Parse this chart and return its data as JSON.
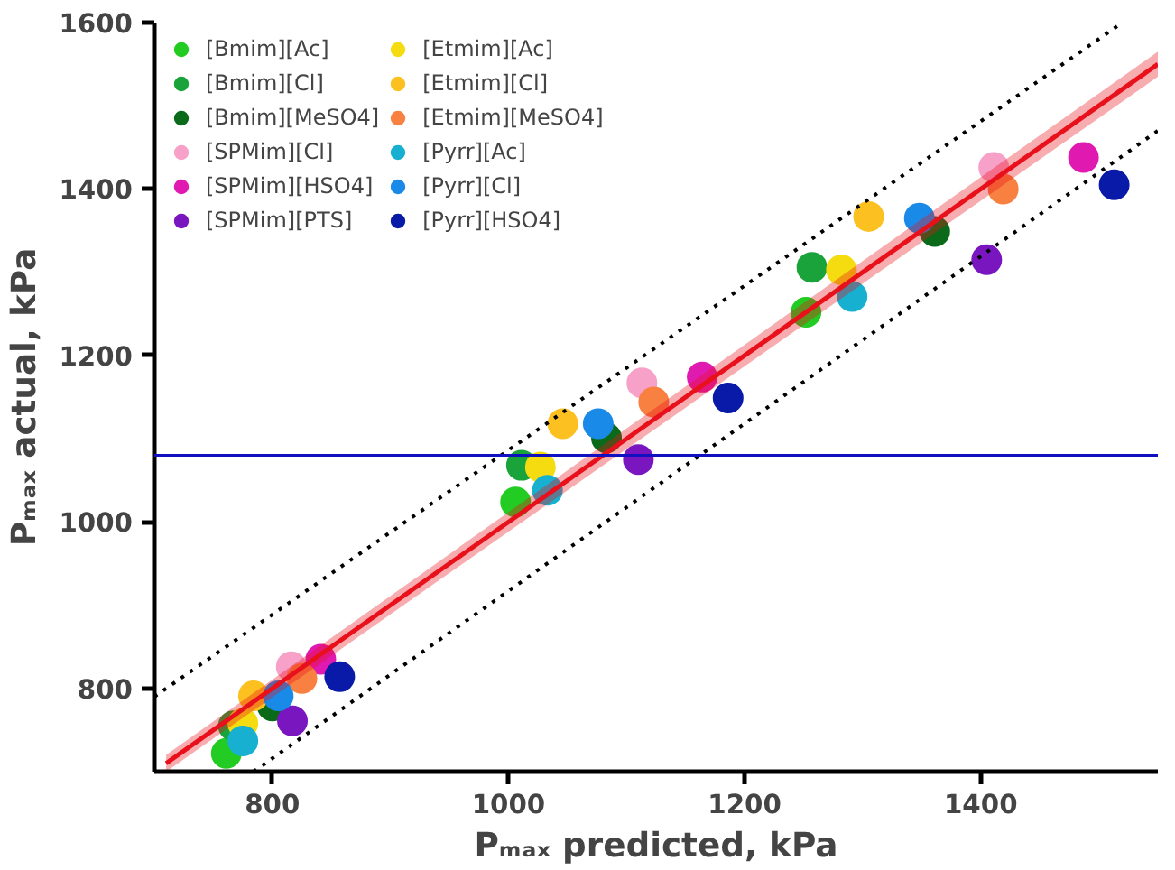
{
  "chart_data": {
    "type": "scatter",
    "xlabel": "Pₘₐₓ predicted, kPa",
    "ylabel": "Pₘₐₓ actual, kPa",
    "xlim": [
      700,
      1550
    ],
    "ylim": [
      700,
      1600
    ],
    "xticks": [
      800,
      1000,
      1200,
      1400
    ],
    "yticks": [
      800,
      1000,
      1200,
      1400,
      1600
    ],
    "marker": "circle",
    "legend": "top left",
    "ref_lines": [
      {
        "axis": "y",
        "value": 1080,
        "color": "#1010c0"
      }
    ],
    "series": [
      {
        "name": "[Bmim][Ac]",
        "color": "#22cc22",
        "x": [
          761,
          1006,
          1252
        ],
        "values": [
          722,
          1024,
          1252
        ]
      },
      {
        "name": "[Bmim][Cl]",
        "color": "#1aa33a",
        "x": [
          767,
          1011,
          1257
        ],
        "values": [
          755,
          1068,
          1306
        ]
      },
      {
        "name": "[Bmim][MeSO4]",
        "color": "#0a6a1a",
        "x": [
          800,
          1083,
          1361
        ],
        "values": [
          779,
          1101,
          1349
        ]
      },
      {
        "name": "[SPMim][Cl]",
        "color": "#f7a0c8",
        "x": [
          816,
          1113,
          1411
        ],
        "values": [
          826,
          1167,
          1426
        ]
      },
      {
        "name": "[SPMim][HSO4]",
        "color": "#e01ab0",
        "x": [
          841,
          1164,
          1487
        ],
        "values": [
          835,
          1174,
          1438
        ]
      },
      {
        "name": "[SPMim][PTS]",
        "color": "#7a16c0",
        "x": [
          817,
          1110,
          1405
        ],
        "values": [
          761,
          1075,
          1315
        ]
      },
      {
        "name": "[Etmim][Ac]",
        "color": "#f5dc10",
        "x": [
          775,
          1027,
          1282
        ],
        "values": [
          758,
          1066,
          1303
        ]
      },
      {
        "name": "[Etmim][Cl]",
        "color": "#fcc020",
        "x": [
          784,
          1046,
          1305
        ],
        "values": [
          791,
          1118,
          1367
        ]
      },
      {
        "name": "[Etmim][MeSO4]",
        "color": "#f88040",
        "x": [
          825,
          1123,
          1419
        ],
        "values": [
          812,
          1144,
          1400
        ]
      },
      {
        "name": "[Pyrr][Ac]",
        "color": "#18b0d0",
        "x": [
          775,
          1033,
          1291
        ],
        "values": [
          737,
          1038,
          1271
        ]
      },
      {
        "name": "[Pyrr][Cl]",
        "color": "#1a8ae8",
        "x": [
          805,
          1076,
          1348
        ],
        "values": [
          791,
          1118,
          1365
        ]
      },
      {
        "name": "[Pyrr][HSO4]",
        "color": "#0a1aa8",
        "x": [
          857,
          1186,
          1513
        ],
        "values": [
          814,
          1149,
          1405
        ]
      },
      {
        "type": "line",
        "color": "#e8101a",
        "x": [
          710,
          1550
        ],
        "values": [
          710,
          1550
        ],
        "lower": [
          700,
          1535
        ],
        "upper": [
          720,
          1565
        ],
        "line_style": "solid",
        "marker": "none"
      },
      {
        "type": "line",
        "color": "#000000",
        "x": [
          700,
          1520
        ],
        "values": [
          790,
          1600
        ],
        "line_style": "dotted",
        "marker": "none"
      },
      {
        "type": "line",
        "color": "#000000",
        "x": [
          784,
          1550
        ],
        "values": [
          700,
          1470
        ],
        "line_style": "dotted",
        "marker": "none"
      }
    ]
  }
}
